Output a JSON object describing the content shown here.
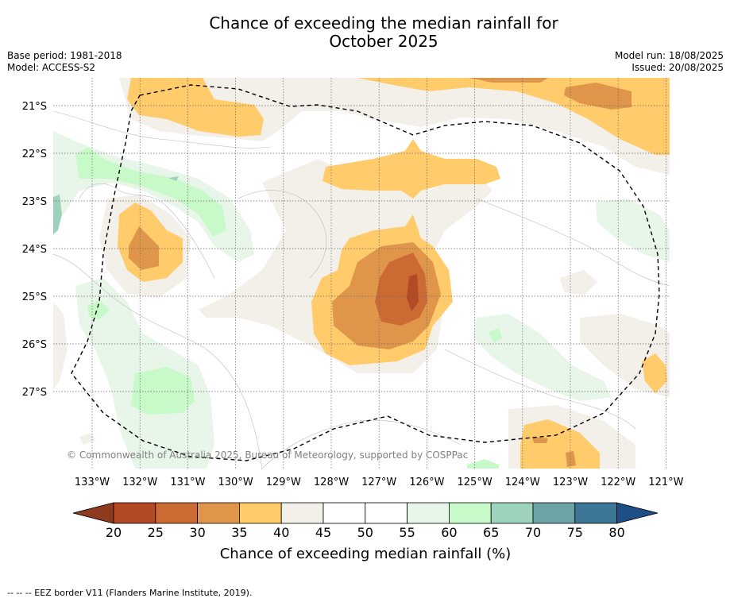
{
  "title_line1": "Chance of exceeding the median rainfall for",
  "title_line2": "October 2025",
  "base_period": "Base period: 1981-2018",
  "model": "Model: ACCESS-S2",
  "model_run": "Model run: 18/08/2025",
  "issued": "Issued: 20/08/2025",
  "copyright": "© Commonwealth of Australia 2025, Bureau of Meteorology, supported by COSPPac",
  "lat_labels": [
    "21°S",
    "22°S",
    "23°S",
    "24°S",
    "25°S",
    "26°S",
    "27°S"
  ],
  "lon_labels": [
    "133°W",
    "132°W",
    "131°W",
    "130°W",
    "129°W",
    "128°W",
    "127°W",
    "126°W",
    "125°W",
    "124°W",
    "123°W",
    "122°W",
    "121°W"
  ],
  "colorbar": {
    "ticks": [
      "20",
      "25",
      "30",
      "35",
      "40",
      "45",
      "50",
      "55",
      "60",
      "65",
      "70",
      "75",
      "80"
    ],
    "title": "Chance of exceeding median rainfall (%)",
    "colors": [
      "#8e3a1e",
      "#b44a25",
      "#cc6a34",
      "#e0964a",
      "#ffcb6b",
      "#f3efe9",
      "#ffffff",
      "#ffffff",
      "#e8f5e9",
      "#c8f9c8",
      "#9dd2bc",
      "#6ba3a6",
      "#3d7795",
      "#1d4e85"
    ]
  },
  "legend_footer": "-- -- -- EEZ border V11 (Flanders Marine Institute, 2019).",
  "colors": {
    "c_25_30": "#cc6a34",
    "c_30_35": "#e0964a",
    "c_35_40": "#ffcb6b",
    "c_40_45": "#f3efe9",
    "c_55_60": "#e8f5e9",
    "c_60_65": "#c8f9c8",
    "c_65_70": "#9dd2bc"
  }
}
